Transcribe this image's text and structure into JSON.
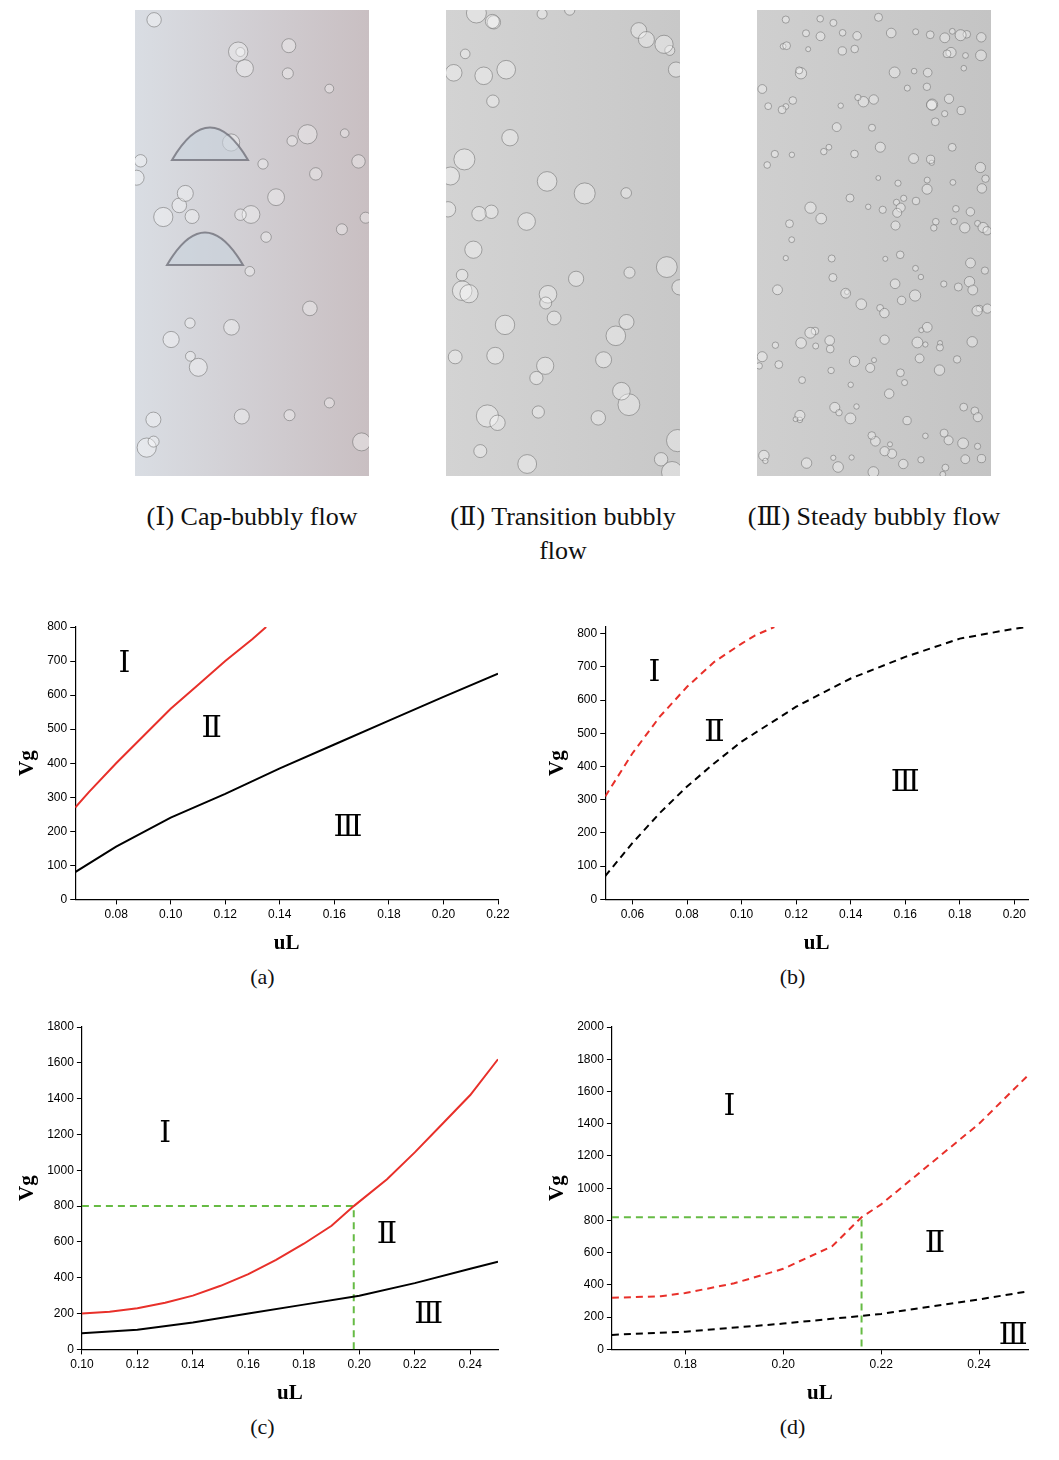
{
  "images": [
    {
      "caption": "(Ⅰ) Cap-bubbly flow"
    },
    {
      "caption": "(Ⅱ) Transition bubbly flow"
    },
    {
      "caption": "(Ⅲ) Steady bubbly flow"
    }
  ],
  "chart_data": [
    {
      "type": "line",
      "caption": "(a)",
      "x_label": "uL",
      "y_label": "Vg",
      "grid": false,
      "xlim": [
        0.065,
        0.22
      ],
      "xticks": [
        0.08,
        {
          "value": 0.1,
          "label": "0.10"
        },
        0.12,
        0.14,
        0.16,
        0.18,
        {
          "value": 0.2,
          "label": "0.20"
        },
        0.22
      ],
      "ylim": [
        0,
        800
      ],
      "yticks": [
        0,
        100,
        200,
        300,
        400,
        500,
        600,
        700,
        800
      ],
      "series": [
        {
          "color": "#e8302a",
          "line_style": "solid",
          "x": [
            0.065,
            0.07,
            0.08,
            0.09,
            0.1,
            0.11,
            0.12,
            0.13,
            0.135
          ],
          "values": [
            270,
            315,
            400,
            480,
            560,
            630,
            700,
            765,
            800
          ]
        },
        {
          "color": "#000000",
          "line_style": "solid",
          "x": [
            0.065,
            0.08,
            0.1,
            0.12,
            0.14,
            0.16,
            0.18,
            0.2,
            0.22
          ],
          "values": [
            80,
            155,
            240,
            310,
            385,
            455,
            525,
            595,
            663
          ]
        }
      ],
      "annotations": [
        {
          "text": "Ⅰ",
          "x": 0.083,
          "y": 690
        },
        {
          "text": "Ⅱ",
          "x": 0.115,
          "y": 500
        },
        {
          "text": "Ⅲ",
          "x": 0.165,
          "y": 210
        }
      ]
    },
    {
      "type": "line",
      "caption": "(b)",
      "x_label": "uL",
      "y_label": "Vg",
      "grid": false,
      "xlim": [
        0.05,
        0.205
      ],
      "xticks": [
        0.06,
        0.08,
        {
          "value": 0.1,
          "label": "0.10"
        },
        0.12,
        0.14,
        0.16,
        0.18,
        {
          "value": 0.2,
          "label": "0.20"
        }
      ],
      "ylim": [
        0,
        820
      ],
      "yticks": [
        0,
        100,
        200,
        300,
        400,
        500,
        600,
        700,
        800
      ],
      "series": [
        {
          "color": "#e8302a",
          "line_style": "dashed",
          "x": [
            0.05,
            0.06,
            0.07,
            0.08,
            0.09,
            0.1,
            0.105,
            0.112
          ],
          "values": [
            310,
            440,
            550,
            640,
            715,
            770,
            795,
            820
          ]
        },
        {
          "color": "#000000",
          "line_style": "dashed",
          "x": [
            0.05,
            0.06,
            0.07,
            0.08,
            0.09,
            0.1,
            0.12,
            0.14,
            0.16,
            0.18,
            0.2,
            0.205
          ],
          "values": [
            70,
            170,
            260,
            340,
            410,
            475,
            580,
            665,
            730,
            785,
            815,
            820
          ]
        }
      ],
      "annotations": [
        {
          "text": "Ⅰ",
          "x": 0.068,
          "y": 680
        },
        {
          "text": "Ⅱ",
          "x": 0.09,
          "y": 500
        },
        {
          "text": "Ⅲ",
          "x": 0.16,
          "y": 350
        }
      ]
    },
    {
      "type": "line",
      "caption": "(c)",
      "x_label": "uL",
      "y_label": "Vg",
      "grid": false,
      "xlim": [
        0.1,
        0.25
      ],
      "xticks": [
        {
          "value": 0.1,
          "label": "0.10"
        },
        0.12,
        0.14,
        0.16,
        0.18,
        {
          "value": 0.2,
          "label": "0.20"
        },
        0.22,
        0.24
      ],
      "ylim": [
        0,
        1800
      ],
      "yticks": [
        0,
        200,
        400,
        600,
        800,
        1000,
        1200,
        1400,
        1600,
        1800
      ],
      "series": [
        {
          "color": "#e8302a",
          "line_style": "solid",
          "x": [
            0.1,
            0.11,
            0.12,
            0.13,
            0.14,
            0.15,
            0.16,
            0.17,
            0.18,
            0.19,
            0.198,
            0.21,
            0.22,
            0.23,
            0.24,
            0.25
          ],
          "values": [
            200,
            210,
            230,
            260,
            300,
            355,
            420,
            500,
            590,
            690,
            800,
            950,
            1100,
            1260,
            1420,
            1620
          ]
        },
        {
          "color": "#000000",
          "line_style": "solid",
          "x": [
            0.1,
            0.12,
            0.14,
            0.16,
            0.18,
            0.2,
            0.22,
            0.24,
            0.25
          ],
          "values": [
            90,
            110,
            150,
            200,
            250,
            300,
            370,
            450,
            490
          ]
        },
        {
          "color": "#66bb44",
          "line_style": "dashed",
          "x": [
            0.1,
            0.198,
            0.198
          ],
          "values": [
            800,
            800,
            0
          ]
        }
      ],
      "annotations": [
        {
          "text": "Ⅰ",
          "x": 0.13,
          "y": 1200
        },
        {
          "text": "Ⅱ",
          "x": 0.21,
          "y": 640
        },
        {
          "text": "Ⅲ",
          "x": 0.225,
          "y": 190
        }
      ]
    },
    {
      "type": "line",
      "caption": "(d)",
      "x_label": "uL",
      "y_label": "Vg",
      "grid": false,
      "xlim": [
        0.165,
        0.25
      ],
      "xticks": [
        0.18,
        {
          "value": 0.2,
          "label": "0.20"
        },
        0.22,
        0.24
      ],
      "ylim": [
        0,
        2000
      ],
      "yticks": [
        0,
        200,
        400,
        600,
        800,
        1000,
        1200,
        1400,
        1600,
        1800,
        2000
      ],
      "series": [
        {
          "color": "#e8302a",
          "line_style": "dashed",
          "x": [
            0.165,
            0.175,
            0.18,
            0.19,
            0.2,
            0.21,
            0.216,
            0.22,
            0.23,
            0.24,
            0.25
          ],
          "values": [
            320,
            330,
            350,
            410,
            500,
            640,
            820,
            900,
            1150,
            1400,
            1700
          ]
        },
        {
          "color": "#000000",
          "line_style": "dashed",
          "x": [
            0.165,
            0.18,
            0.2,
            0.22,
            0.24,
            0.25
          ],
          "values": [
            90,
            110,
            160,
            220,
            310,
            360
          ]
        },
        {
          "color": "#66bb44",
          "line_style": "dashed",
          "x": [
            0.165,
            0.216,
            0.216
          ],
          "values": [
            820,
            820,
            0
          ]
        }
      ],
      "annotations": [
        {
          "text": "Ⅰ",
          "x": 0.189,
          "y": 1500
        },
        {
          "text": "Ⅱ",
          "x": 0.231,
          "y": 650
        },
        {
          "text": "Ⅲ",
          "x": 0.247,
          "y": 80
        }
      ]
    }
  ]
}
